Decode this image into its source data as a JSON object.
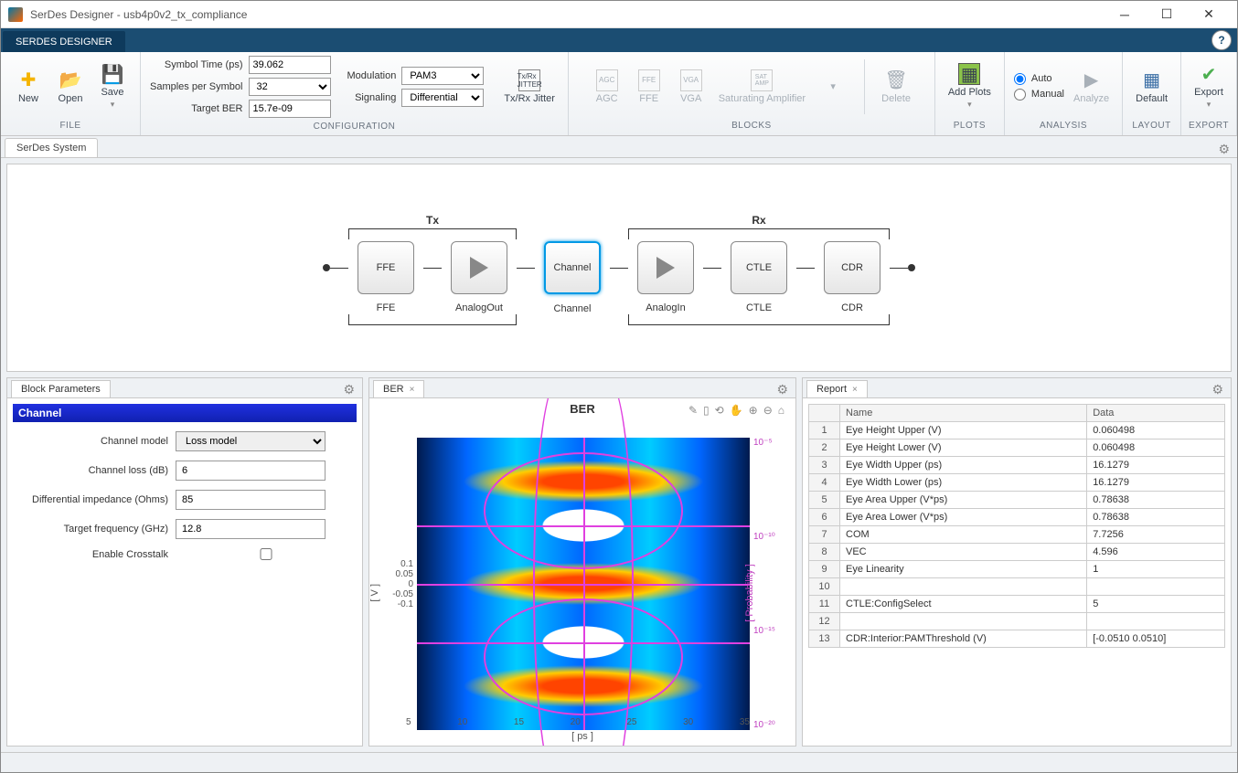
{
  "window": {
    "title": "SerDes Designer - usb4p0v2_tx_compliance"
  },
  "ribbon": {
    "tab": "SERDES DESIGNER",
    "file": {
      "label": "FILE",
      "new": "New",
      "open": "Open",
      "save": "Save"
    },
    "config": {
      "label": "CONFIGURATION",
      "symbol_time_lbl": "Symbol Time (ps)",
      "symbol_time": "39.062",
      "samples_lbl": "Samples per Symbol",
      "samples": "32",
      "target_ber_lbl": "Target BER",
      "target_ber": "15.7e-09",
      "modulation_lbl": "Modulation",
      "modulation": "PAM3",
      "signaling_lbl": "Signaling",
      "signaling": "Differential",
      "jitter": "Tx/Rx Jitter"
    },
    "blocks": {
      "label": "BLOCKS",
      "agc": "AGC",
      "ffe": "FFE",
      "vga": "VGA",
      "satamp": "Saturating Amplifier",
      "delete": "Delete"
    },
    "plots": {
      "label": "PLOTS",
      "add": "Add Plots"
    },
    "analysis": {
      "label": "ANALYSIS",
      "auto": "Auto",
      "manual": "Manual",
      "analyze": "Analyze"
    },
    "layout": {
      "label": "LAYOUT",
      "default": "Default"
    },
    "export": {
      "label": "EXPORT",
      "export": "Export"
    }
  },
  "system_tab": "SerDes System",
  "chain": {
    "tx_label": "Tx",
    "rx_label": "Rx",
    "blocks": [
      {
        "id": "FFE",
        "name": "FFE"
      },
      {
        "id": "tri",
        "name": "AnalogOut"
      },
      {
        "id": "Channel",
        "name": "Channel",
        "selected": true
      },
      {
        "id": "tri",
        "name": "AnalogIn"
      },
      {
        "id": "CTLE",
        "name": "CTLE"
      },
      {
        "id": "CDR",
        "name": "CDR"
      }
    ]
  },
  "block_params": {
    "tab": "Block Parameters",
    "header": "Channel",
    "model_lbl": "Channel model",
    "model": "Loss model",
    "loss_lbl": "Channel loss (dB)",
    "loss": "6",
    "imp_lbl": "Differential impedance (Ohms)",
    "imp": "85",
    "freq_lbl": "Target frequency (GHz)",
    "freq": "12.8",
    "xtalk_lbl": "Enable Crosstalk"
  },
  "ber": {
    "tab": "BER",
    "title": "BER",
    "ylabel": "[ V ]",
    "xlabel": "[ ps ]",
    "rlabel": "[ Probability ]",
    "yticks": [
      "0.1",
      "0.05",
      "0",
      "-0.05",
      "-0.1"
    ],
    "xticks": [
      "5",
      "10",
      "15",
      "20",
      "25",
      "30",
      "35"
    ],
    "rticks": [
      "10⁻⁵",
      "10⁻¹⁰",
      "10⁻¹⁵",
      "10⁻²⁰"
    ],
    "ylim": [
      -0.13,
      0.13
    ],
    "xlim": [
      0,
      40
    ],
    "colors": {
      "overlay": "#e040e0",
      "heat_low": "#001a4d",
      "heat_mid": "#0099ff",
      "heat_high": "#ff4400"
    }
  },
  "report": {
    "tab": "Report",
    "cols": [
      "Name",
      "Data"
    ],
    "rows": [
      {
        "i": "1",
        "name": "Eye Height Upper (V)",
        "data": "0.060498"
      },
      {
        "i": "2",
        "name": "Eye Height Lower (V)",
        "data": "0.060498"
      },
      {
        "i": "3",
        "name": "Eye Width Upper (ps)",
        "data": "16.1279"
      },
      {
        "i": "4",
        "name": "Eye Width Lower (ps)",
        "data": "16.1279"
      },
      {
        "i": "5",
        "name": "Eye Area Upper (V*ps)",
        "data": "0.78638"
      },
      {
        "i": "6",
        "name": "Eye Area Lower (V*ps)",
        "data": "0.78638"
      },
      {
        "i": "7",
        "name": "COM",
        "data": "7.7256"
      },
      {
        "i": "8",
        "name": "VEC",
        "data": "4.596"
      },
      {
        "i": "9",
        "name": "Eye Linearity",
        "data": "1"
      },
      {
        "i": "10",
        "name": "",
        "data": ""
      },
      {
        "i": "11",
        "name": "CTLE:ConfigSelect",
        "data": "5"
      },
      {
        "i": "12",
        "name": "",
        "data": ""
      },
      {
        "i": "13",
        "name": "CDR:Interior:PAMThreshold (V)",
        "data": "[-0.0510 0.0510]"
      }
    ]
  }
}
